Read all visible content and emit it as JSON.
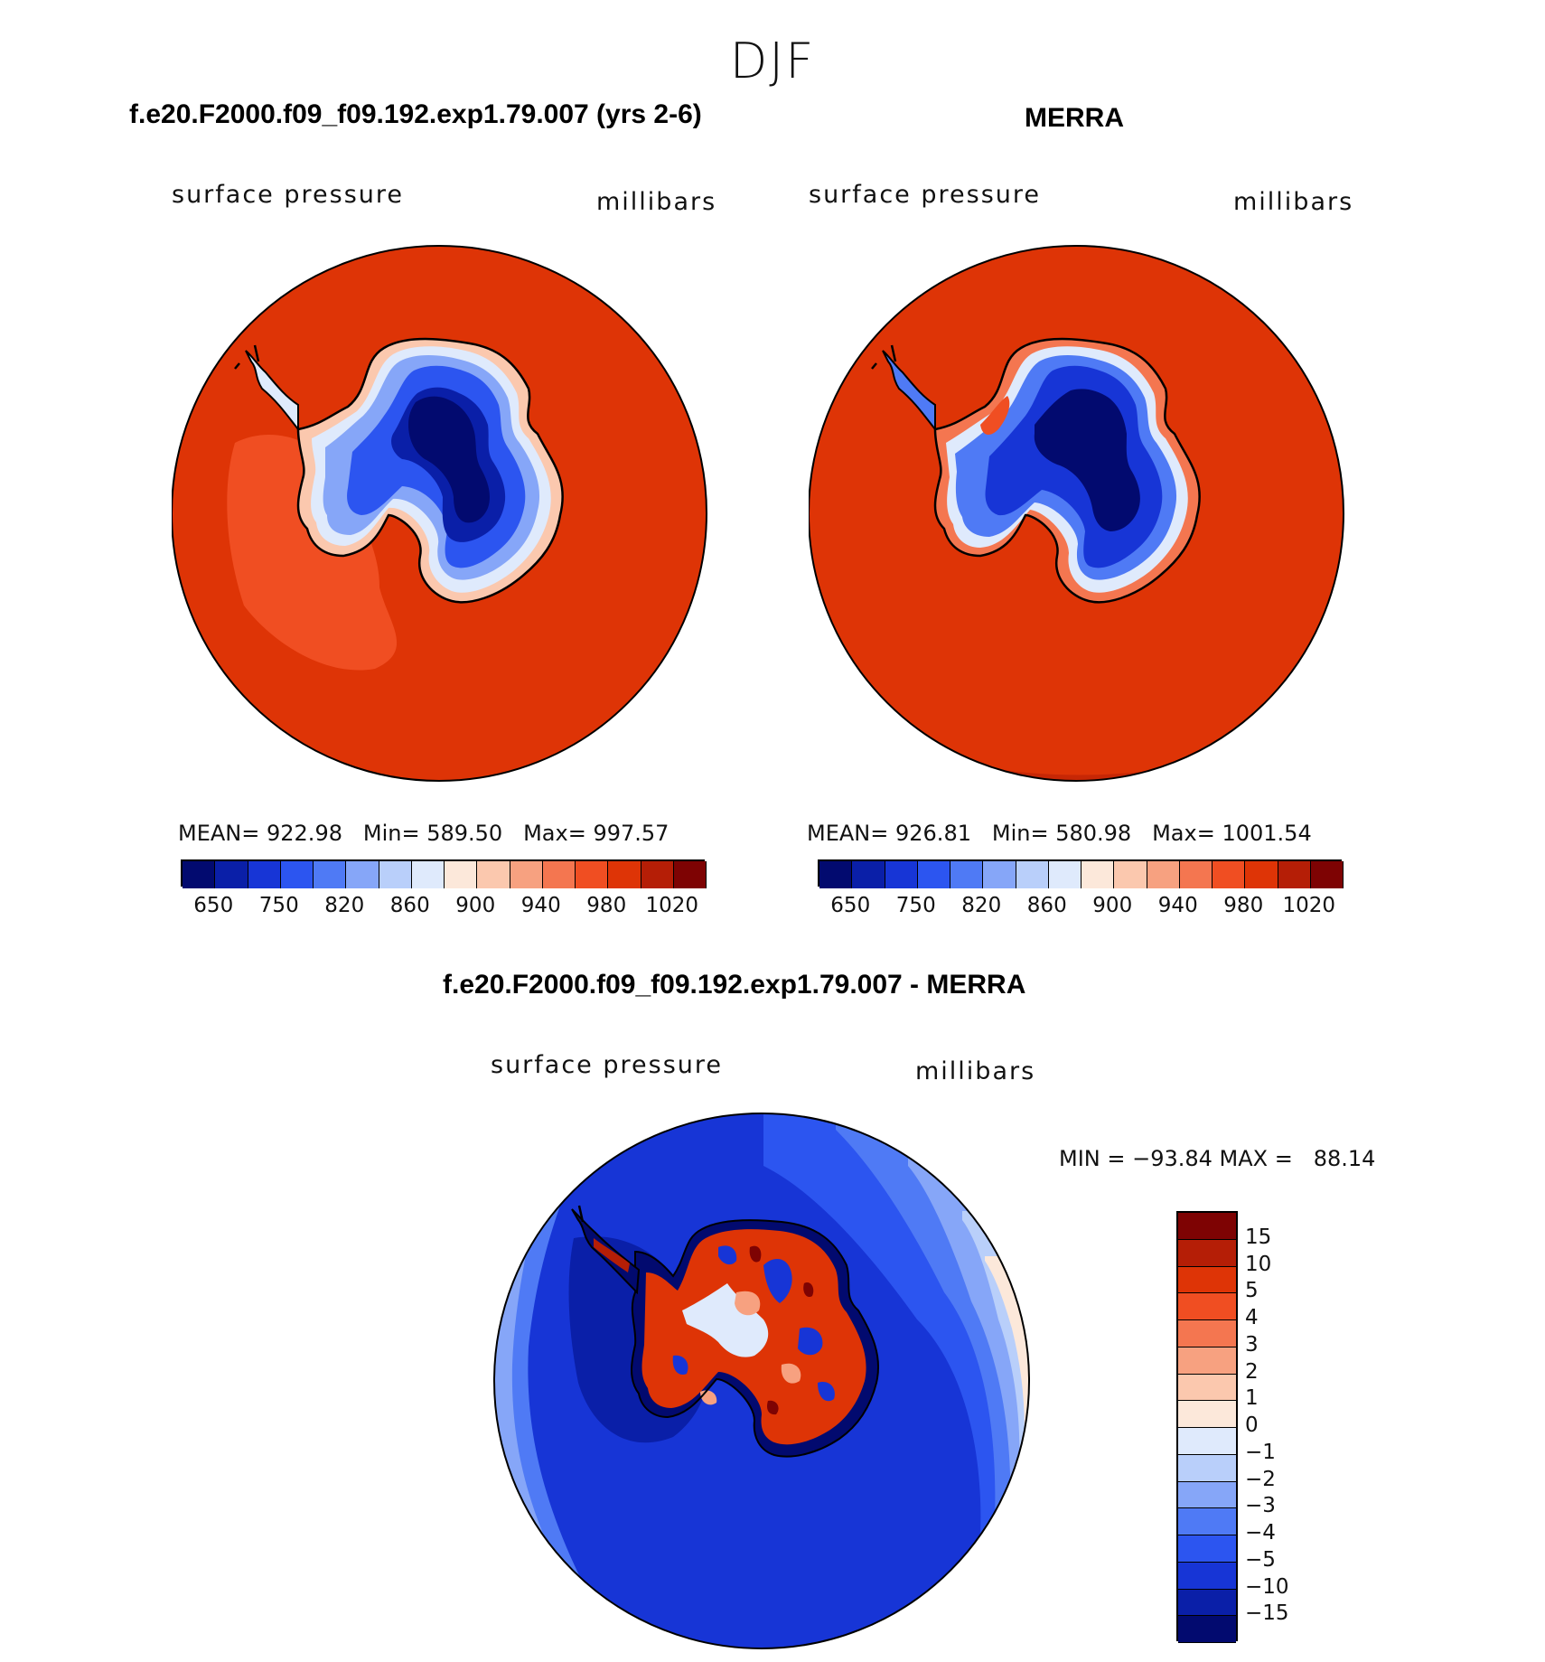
{
  "title": "DJF",
  "panels": [
    {
      "id": "model",
      "case_title": "f.e20.F2000.f09_f09.192.exp1.79.007 (yrs 2-6)",
      "variable": "surface pressure",
      "units": "millibars",
      "stats": {
        "mean_label": "MEAN=",
        "mean": "922.98",
        "min_label": "Min=",
        "min": "589.50",
        "max_label": "Max=",
        "max": "997.57"
      }
    },
    {
      "id": "obs",
      "case_title": "MERRA",
      "variable": "surface pressure",
      "units": "millibars",
      "stats": {
        "mean_label": "MEAN=",
        "mean": "926.81",
        "min_label": "Min=",
        "min": "580.98",
        "max_label": "Max=",
        "max": "1001.54"
      }
    },
    {
      "id": "diff",
      "case_title": "f.e20.F2000.f09_f09.192.exp1.79.007 - MERRA",
      "variable": "surface pressure",
      "units": "millibars",
      "stats_text": "MIN = −93.84 MAX =   88.14"
    }
  ],
  "colorbar_abs": {
    "colors": [
      "#020a6f",
      "#0a1fa8",
      "#1735d6",
      "#2c55f0",
      "#4f7af5",
      "#86a6f8",
      "#b9cffa",
      "#dfeafc",
      "#fce8da",
      "#fbc8ae",
      "#f7a180",
      "#f47650",
      "#f04e22",
      "#de3406",
      "#b51e06",
      "#7e0303"
    ],
    "tick_labels": [
      "650",
      "750",
      "820",
      "860",
      "900",
      "940",
      "980",
      "1020"
    ]
  },
  "colorbar_diff": {
    "colors": [
      "#7e0303",
      "#b51e06",
      "#de3406",
      "#f04e22",
      "#f47650",
      "#f7a180",
      "#fbc8ae",
      "#fce8da",
      "#dfeafc",
      "#b9cffa",
      "#86a6f8",
      "#4f7af5",
      "#2c55f0",
      "#1735d6",
      "#0a1fa8",
      "#020a6f"
    ],
    "tick_labels": [
      "15",
      "10",
      "5",
      "4",
      "3",
      "2",
      "1",
      "0",
      "−1",
      "−2",
      "−3",
      "−4",
      "−5",
      "−10",
      "−15"
    ]
  }
}
